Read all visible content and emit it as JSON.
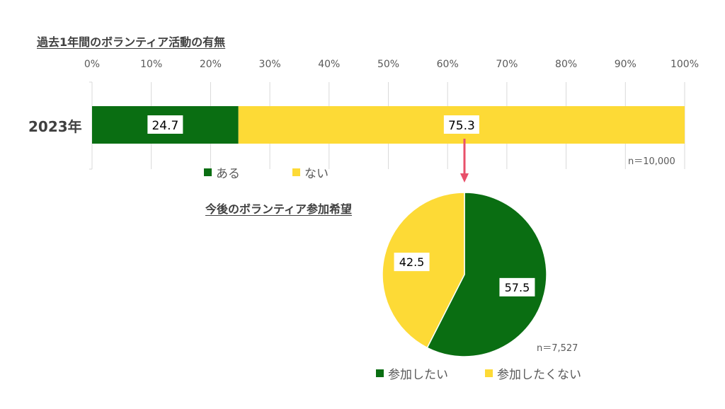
{
  "bar_title": "過去1年間のボランティア活動の有無",
  "pie_title": "今後のボランティア参加希望",
  "bar_n": "n＝10,000",
  "pie_n": "n＝7,527",
  "colors": {
    "green": "#0a6e12",
    "yellow": "#fdda36",
    "arrow": "#e8506a",
    "grid": "#d9d9d9"
  },
  "chart_data": [
    {
      "type": "bar",
      "orientation": "horizontal-stacked",
      "title": "過去1年間のボランティア活動の有無",
      "categories": [
        "2023年"
      ],
      "xlim": [
        0,
        100
      ],
      "x_ticks": [
        "0%",
        "10%",
        "20%",
        "30%",
        "40%",
        "50%",
        "60%",
        "70%",
        "80%",
        "90%",
        "100%"
      ],
      "grid": true,
      "legend_position": "bottom",
      "series": [
        {
          "name": "ある",
          "values": [
            24.7
          ],
          "label": "24.7",
          "color": "#0a6e12"
        },
        {
          "name": "ない",
          "values": [
            75.3
          ],
          "label": "75.3",
          "color": "#fdda36"
        }
      ]
    },
    {
      "type": "pie",
      "title": "今後のボランティア参加希望",
      "legend_position": "bottom",
      "slices": [
        {
          "name": "参加したい",
          "value": 57.5,
          "label": "57.5",
          "color": "#0a6e12"
        },
        {
          "name": "参加したくない",
          "value": 42.5,
          "label": "42.5",
          "color": "#fdda36"
        }
      ]
    }
  ]
}
